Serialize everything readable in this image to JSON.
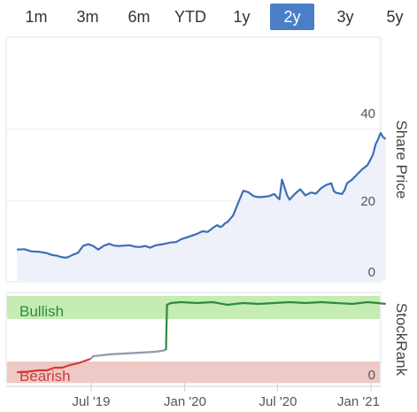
{
  "range_buttons": [
    {
      "label": "1m",
      "active": false
    },
    {
      "label": "3m",
      "active": false
    },
    {
      "label": "6m",
      "active": false
    },
    {
      "label": "YTD",
      "active": false
    },
    {
      "label": "1y",
      "active": false
    },
    {
      "label": "2y",
      "active": true
    },
    {
      "label": "3y",
      "active": false
    },
    {
      "label": "5y",
      "active": false
    }
  ],
  "colors": {
    "accent": "#4a7fc8",
    "price_line": "#3d6fb6",
    "price_fill": "#eef1fa",
    "bullish_zone": "#c4ecb3",
    "bearish_zone": "#efc9c5",
    "bullish_line": "#2e8b3a",
    "neutral_line": "#8c9ab2",
    "bearish_line": "#d23b3b"
  },
  "chart_data": [
    {
      "type": "area",
      "ylabel": "Share Price",
      "ylim": [
        0,
        48
      ],
      "y_ticks": [
        "0",
        "20",
        "40"
      ],
      "x_ticks": [
        "Jul '19",
        "Jan '20",
        "Jul '20",
        "Jan '21"
      ],
      "grid": true,
      "series": [
        {
          "x": [
            "2019-02-05",
            "2019-02-20",
            "2019-03-05",
            "2019-03-20",
            "2019-04-05",
            "2019-04-15",
            "2019-04-25",
            "2019-05-01",
            "2019-05-08",
            "2019-05-15",
            "2019-05-25",
            "2019-06-05",
            "2019-06-15",
            "2019-06-25",
            "2019-07-05",
            "2019-07-15",
            "2019-07-25",
            "2019-08-05",
            "2019-08-15",
            "2019-08-25",
            "2019-09-05",
            "2019-09-15",
            "2019-09-25",
            "2019-10-05",
            "2019-10-15",
            "2019-10-25",
            "2019-11-05",
            "2019-11-15",
            "2019-11-25",
            "2019-12-05",
            "2019-12-15",
            "2019-12-25",
            "2020-01-05",
            "2020-01-15",
            "2020-01-25",
            "2020-02-05",
            "2020-02-15",
            "2020-02-25",
            "2020-03-01",
            "2020-03-05",
            "2020-03-10",
            "2020-03-15",
            "2020-03-20",
            "2020-03-25",
            "2020-04-05",
            "2020-04-15",
            "2020-04-25",
            "2020-05-05",
            "2020-05-15",
            "2020-05-25",
            "2020-06-05",
            "2020-06-15",
            "2020-06-25",
            "2020-07-01",
            "2020-07-05",
            "2020-07-10",
            "2020-07-20",
            "2020-07-25",
            "2020-08-05",
            "2020-08-15",
            "2020-08-25",
            "2020-09-05",
            "2020-09-15",
            "2020-09-25",
            "2020-10-05",
            "2020-10-15",
            "2020-10-20",
            "2020-10-25",
            "2020-11-05",
            "2020-11-10",
            "2020-11-15",
            "2020-11-25",
            "2020-12-05",
            "2020-12-15",
            "2020-12-25",
            "2021-01-01",
            "2021-01-05",
            "2021-01-10",
            "2021-01-15",
            "2021-01-20",
            "2021-01-25",
            "2021-01-30"
          ],
          "values": [
            6.5,
            6.6,
            6.0,
            5.9,
            5.5,
            5.0,
            4.8,
            4.5,
            4.3,
            4.3,
            5.0,
            5.6,
            7.5,
            8.0,
            7.5,
            6.5,
            7.5,
            8.1,
            7.6,
            7.5,
            7.6,
            7.7,
            7.3,
            7.2,
            7.5,
            7.0,
            7.7,
            7.9,
            8.2,
            8.5,
            8.6,
            9.4,
            9.9,
            10.4,
            10.9,
            11.6,
            11.4,
            12.5,
            13.0,
            13.3,
            12.8,
            13.0,
            13.8,
            14.2,
            16.0,
            19.5,
            22.9,
            22.5,
            21.4,
            21.1,
            21.2,
            21.4,
            22.0,
            21.0,
            20.5,
            26.0,
            21.7,
            20.4,
            22.1,
            23.3,
            21.6,
            22.4,
            22.1,
            23.6,
            24.5,
            25.0,
            22.8,
            22.3,
            22.0,
            23.0,
            25.0,
            26.0,
            27.5,
            28.9,
            30.0,
            31.8,
            33.0,
            35.8,
            37.2,
            39.0,
            37.8,
            37.3
          ]
        }
      ]
    },
    {
      "type": "line",
      "ylabel": "StockRank",
      "ylim": [
        0,
        100
      ],
      "y_ticks": [
        "0"
      ],
      "zones": [
        "Bullish",
        "Bearish"
      ],
      "series": [
        {
          "x": [
            "2019-02-05",
            "2019-02-20",
            "2019-03-05",
            "2019-03-20",
            "2019-04-05",
            "2019-04-20",
            "2019-05-05",
            "2019-05-20",
            "2019-06-05",
            "2019-06-20",
            "2019-06-30"
          ],
          "values": [
            12,
            12,
            13,
            14,
            14,
            17,
            17,
            20,
            22,
            25,
            27
          ]
        },
        {
          "x": [
            "2019-07-05",
            "2019-08-05",
            "2019-09-05",
            "2019-10-05",
            "2019-11-05",
            "2019-11-25"
          ],
          "values": [
            30,
            32,
            33,
            34,
            35,
            37
          ]
        },
        {
          "x": [
            "2019-11-27",
            "2019-12-05",
            "2019-12-25",
            "2020-01-25",
            "2020-02-25",
            "2020-03-25",
            "2020-04-25",
            "2020-05-25",
            "2020-06-25",
            "2020-07-25",
            "2020-08-25",
            "2020-09-25",
            "2020-10-25",
            "2020-11-25",
            "2020-12-25",
            "2021-01-15",
            "2021-01-30"
          ],
          "values": [
            88,
            90,
            91,
            90,
            91,
            88,
            90,
            89,
            90,
            91,
            90,
            91,
            90,
            89,
            91,
            90,
            89
          ]
        }
      ]
    }
  ]
}
